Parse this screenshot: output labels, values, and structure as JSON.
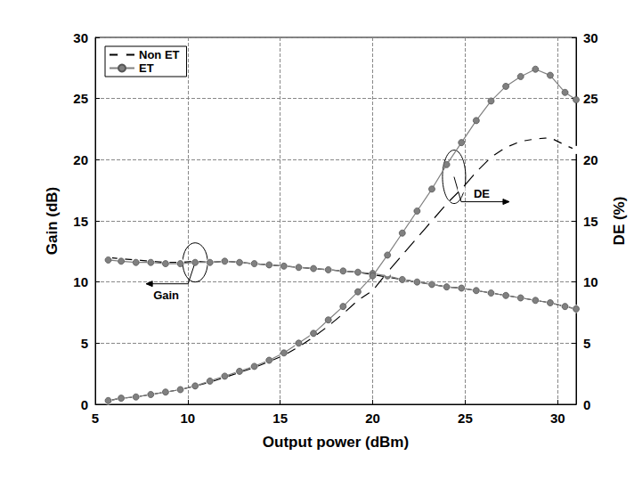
{
  "chart_data": {
    "type": "line",
    "xlabel": "Output power (dBm)",
    "ylabel": "Gain (dB)",
    "y2label": "DE (%)",
    "xlim": [
      5,
      31
    ],
    "xticks": [
      5,
      10,
      15,
      20,
      25,
      30
    ],
    "ylim": [
      0,
      30
    ],
    "yticks": [
      0,
      5,
      10,
      15,
      20,
      25,
      30
    ],
    "y2lim": [
      0,
      30
    ],
    "y2ticks": [
      0,
      5,
      10,
      15,
      20,
      25,
      30
    ],
    "grid": true,
    "legend": "upper left",
    "x": [
      5.7,
      6.4,
      7.2,
      8.0,
      8.8,
      9.6,
      10.4,
      11.2,
      12.0,
      12.8,
      13.6,
      14.4,
      15.2,
      16.0,
      16.8,
      17.6,
      18.4,
      19.2,
      20.0,
      20.8,
      21.6,
      22.4,
      23.2,
      24.0,
      24.8,
      25.6,
      26.4,
      27.2,
      28.0,
      28.8,
      29.6,
      30.4,
      31.0
    ],
    "series": [
      {
        "name": "Non ET",
        "color": "#000000",
        "marker": "open_circle",
        "axis": "y",
        "values": [
          12.0,
          11.9,
          11.8,
          11.7,
          11.6,
          11.6,
          11.7,
          11.6,
          11.7,
          11.6,
          11.5,
          11.4,
          11.3,
          11.2,
          11.1,
          11.0,
          10.9,
          10.8,
          10.6,
          10.4,
          10.2,
          10.0,
          9.8,
          9.6,
          9.5,
          9.3,
          9.1,
          8.9,
          8.7,
          8.5,
          8.3,
          8.0,
          7.8
        ]
      },
      {
        "name": "ET",
        "color": "#808080",
        "marker": "circle",
        "axis": "y",
        "values": [
          11.8,
          11.7,
          11.6,
          11.6,
          11.5,
          11.5,
          11.6,
          11.6,
          11.7,
          11.6,
          11.5,
          11.4,
          11.3,
          11.2,
          11.1,
          11.0,
          10.9,
          10.8,
          10.7,
          10.5,
          10.2,
          10.0,
          9.8,
          9.6,
          9.5,
          9.3,
          9.1,
          8.9,
          8.7,
          8.5,
          8.3,
          8.0,
          7.8
        ]
      },
      {
        "name": "Non ET",
        "color": "#000000",
        "marker": "open_circle",
        "axis": "y2",
        "values": [
          0.3,
          0.5,
          0.6,
          0.8,
          1.0,
          1.2,
          1.5,
          1.8,
          2.2,
          2.6,
          3.0,
          3.5,
          4.0,
          4.7,
          5.5,
          6.4,
          7.4,
          8.5,
          9.3,
          10.8,
          12.2,
          13.6,
          15.0,
          16.4,
          17.6,
          19.0,
          20.2,
          21.0,
          21.5,
          21.7,
          21.8,
          21.2,
          20.8
        ]
      },
      {
        "name": "ET",
        "color": "#808080",
        "marker": "circle",
        "axis": "y2",
        "values": [
          0.3,
          0.5,
          0.6,
          0.8,
          1.0,
          1.2,
          1.5,
          1.9,
          2.3,
          2.7,
          3.1,
          3.6,
          4.2,
          5.0,
          5.8,
          6.9,
          8.0,
          9.2,
          10.5,
          12.2,
          14.0,
          15.8,
          17.6,
          19.6,
          21.4,
          23.2,
          24.8,
          26.0,
          26.8,
          27.4,
          26.9,
          25.5,
          24.9
        ]
      }
    ],
    "annotations": [
      {
        "text": "Gain",
        "x": 10.4,
        "y": 11.6,
        "axis": "y",
        "direction": "left"
      },
      {
        "text": "DE",
        "x": 24.4,
        "y": 18.6,
        "axis": "y2",
        "direction": "right"
      }
    ]
  }
}
